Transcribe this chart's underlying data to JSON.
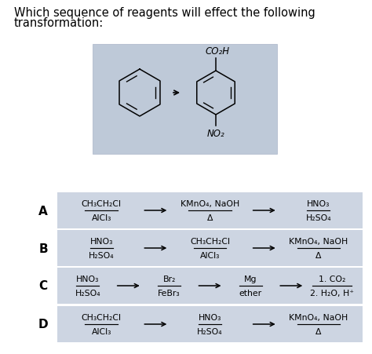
{
  "title_line1": "Which sequence of reagents will effect the following",
  "title_line2": "transformation:",
  "bg_color": "#ffffff",
  "box_bg": "#ccd5e3",
  "options": [
    {
      "label": "A",
      "steps": [
        {
          "top": "CH₃CH₂Cl",
          "bottom": "AlCl₃",
          "arrow": true
        },
        {
          "top": "KMnO₄, NaOH",
          "bottom": "Δ",
          "arrow": true
        },
        {
          "top": "HNO₃",
          "bottom": "H₂SO₄",
          "arrow": false
        }
      ]
    },
    {
      "label": "B",
      "steps": [
        {
          "top": "HNO₃",
          "bottom": "H₂SO₄",
          "arrow": true
        },
        {
          "top": "CH₃CH₂Cl",
          "bottom": "AlCl₃",
          "arrow": true
        },
        {
          "top": "KMnO₄, NaOH",
          "bottom": "Δ",
          "arrow": false
        }
      ]
    },
    {
      "label": "C",
      "steps": [
        {
          "top": "HNO₃",
          "bottom": "H₂SO₄",
          "arrow": true
        },
        {
          "top": "Br₂",
          "bottom": "FeBr₃",
          "arrow": true
        },
        {
          "top": "Mg",
          "bottom": "ether",
          "arrow": true
        },
        {
          "top": "1. CO₂",
          "bottom": "2. H₂O, H⁺",
          "arrow": false
        }
      ]
    },
    {
      "label": "D",
      "steps": [
        {
          "top": "CH₃CH₂Cl",
          "bottom": "AlCl₃",
          "arrow": true
        },
        {
          "top": "HNO₃",
          "bottom": "H₂SO₄",
          "arrow": true
        },
        {
          "top": "KMnO₄, NaOH",
          "bottom": "Δ",
          "arrow": false
        }
      ]
    }
  ],
  "font_size_title": 10.5,
  "font_size_chem": 7.8,
  "font_size_label": 11
}
